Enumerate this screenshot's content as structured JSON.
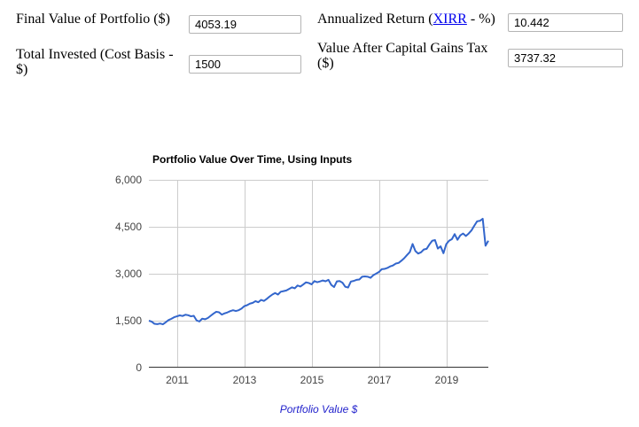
{
  "form": {
    "final_value": {
      "label": "Final Value of Portfolio ($)",
      "value": "4053.19"
    },
    "annualized_return": {
      "label_prefix": "Annualized Return (",
      "link_text": "XIRR",
      "label_suffix": " - %)",
      "value": "10.442"
    },
    "total_invested": {
      "label": "Total Invested (Cost Basis - $)",
      "value": "1500"
    },
    "after_tax_value": {
      "label": "Value After Capital Gains Tax ($)",
      "value": "3737.32"
    }
  },
  "chart_data": {
    "type": "line",
    "title": "Portfolio Value Over Time, Using Inputs",
    "xlabel": "",
    "ylabel": "",
    "legend": "Portfolio Value $",
    "legend_position": "bottom",
    "grid": true,
    "xlim": [
      2010.1667,
      2020.25
    ],
    "ylim": [
      0,
      6000
    ],
    "x_start": 2010.1667,
    "x_step": 0.0833333,
    "x_ticks": [
      2011,
      2013,
      2015,
      2017,
      2019
    ],
    "x_tick_labels": [
      "2011",
      "2013",
      "2015",
      "2017",
      "2019"
    ],
    "y_ticks": [
      0,
      1500,
      3000,
      4500,
      6000
    ],
    "y_tick_labels": [
      "0",
      "1,500",
      "3,000",
      "4,500",
      "6,000"
    ],
    "colors": {
      "line": "#3366cc",
      "gridline": "#cccccc",
      "baseline": "#333333",
      "axis_text": "#444444",
      "legend_text": "#2222cc",
      "link": "#0000ee"
    },
    "series": [
      {
        "name": "Portfolio Value $",
        "color": "#3366cc",
        "values": [
          1500,
          1470,
          1400,
          1390,
          1410,
          1385,
          1450,
          1520,
          1560,
          1610,
          1640,
          1670,
          1650,
          1690,
          1675,
          1640,
          1655,
          1510,
          1475,
          1565,
          1545,
          1585,
          1655,
          1725,
          1785,
          1770,
          1695,
          1735,
          1765,
          1805,
          1835,
          1810,
          1835,
          1885,
          1965,
          1995,
          2045,
          2070,
          2125,
          2090,
          2165,
          2130,
          2195,
          2270,
          2335,
          2385,
          2335,
          2425,
          2445,
          2465,
          2515,
          2565,
          2535,
          2625,
          2590,
          2655,
          2725,
          2705,
          2660,
          2765,
          2730,
          2755,
          2785,
          2760,
          2805,
          2645,
          2575,
          2755,
          2765,
          2715,
          2585,
          2560,
          2750,
          2770,
          2805,
          2815,
          2905,
          2915,
          2905,
          2870,
          2955,
          3005,
          3055,
          3145,
          3155,
          3185,
          3235,
          3265,
          3325,
          3345,
          3415,
          3495,
          3595,
          3690,
          3950,
          3725,
          3645,
          3685,
          3775,
          3795,
          3935,
          4055,
          4075,
          3805,
          3875,
          3655,
          3945,
          4055,
          4105,
          4265,
          4085,
          4225,
          4285,
          4205,
          4285,
          4385,
          4535,
          4675,
          4690,
          4755,
          3895,
          4053.19
        ]
      }
    ]
  }
}
